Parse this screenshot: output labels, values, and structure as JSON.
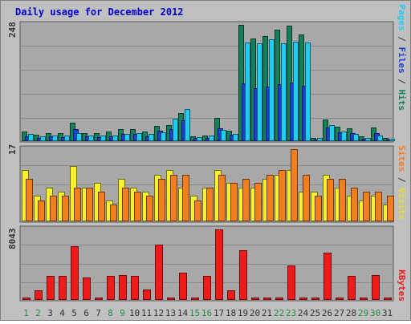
{
  "chart_data": [
    {
      "type": "bar",
      "title": "Daily usage for December 2012",
      "ymax_label": "248",
      "categories": [
        "1",
        "2",
        "3",
        "4",
        "5",
        "6",
        "7",
        "8",
        "9",
        "10",
        "11",
        "12",
        "13",
        "14",
        "15",
        "16",
        "17",
        "18",
        "19",
        "20",
        "21",
        "22",
        "23",
        "24",
        "25",
        "26",
        "27",
        "28",
        "29",
        "30",
        "31"
      ],
      "weekend_days": [
        "1",
        "2",
        "8",
        "9",
        "15",
        "16",
        "22",
        "23",
        "29",
        "30"
      ],
      "series": [
        {
          "name": "Hits",
          "color": "#157f5a",
          "values": [
            20,
            13,
            17,
            16,
            38,
            16,
            16,
            19,
            24,
            24,
            19,
            31,
            33,
            57,
            9,
            11,
            48,
            21,
            236,
            209,
            213,
            226,
            234,
            216,
            7,
            44,
            30,
            26,
            9,
            27,
            7
          ]
        },
        {
          "name": "Files",
          "color": "#1a3fd8",
          "values": [
            10,
            7,
            9,
            8,
            25,
            10,
            8,
            9,
            14,
            14,
            9,
            21,
            24,
            43,
            6,
            7,
            26,
            13,
            117,
            108,
            111,
            115,
            118,
            113,
            4,
            28,
            18,
            16,
            5,
            17,
            3
          ]
        },
        {
          "name": "Pages",
          "color": "#22ccf0",
          "values": [
            14,
            9,
            11,
            11,
            17,
            11,
            11,
            12,
            14,
            16,
            14,
            18,
            46,
            65,
            8,
            11,
            23,
            15,
            200,
            198,
            207,
            198,
            202,
            200,
            6,
            32,
            20,
            14,
            6,
            12,
            5
          ]
        }
      ]
    },
    {
      "type": "bar",
      "ymax_label": "17",
      "series": [
        {
          "name": "Visits",
          "color": "#f7f12e",
          "values": [
            12,
            6,
            8,
            7,
            13,
            8,
            9,
            5,
            10,
            8,
            7,
            11,
            12,
            8,
            6,
            8,
            12,
            9,
            8,
            8,
            10,
            11,
            12,
            7,
            7,
            11,
            8,
            6,
            5,
            6,
            4
          ]
        },
        {
          "name": "Sites",
          "color": "#f0801f",
          "values": [
            10,
            5,
            6,
            6,
            8,
            8,
            7,
            4,
            8,
            7,
            6,
            10,
            11,
            11,
            5,
            8,
            11,
            9,
            10,
            9,
            11,
            12,
            17,
            11,
            6,
            10,
            10,
            8,
            7,
            7,
            6
          ]
        }
      ]
    },
    {
      "type": "bar",
      "ymax_label": "8043",
      "series": [
        {
          "name": "KBytes",
          "color": "#ef1b1b",
          "values": [
            290,
            1050,
            2650,
            2650,
            5850,
            2450,
            290,
            2650,
            2750,
            2650,
            1150,
            6050,
            290,
            3000,
            290,
            2650,
            7700,
            1050,
            5400,
            290,
            290,
            290,
            3750,
            290,
            290,
            5150,
            290,
            2650,
            290,
            2750,
            290
          ]
        }
      ]
    }
  ]
}
